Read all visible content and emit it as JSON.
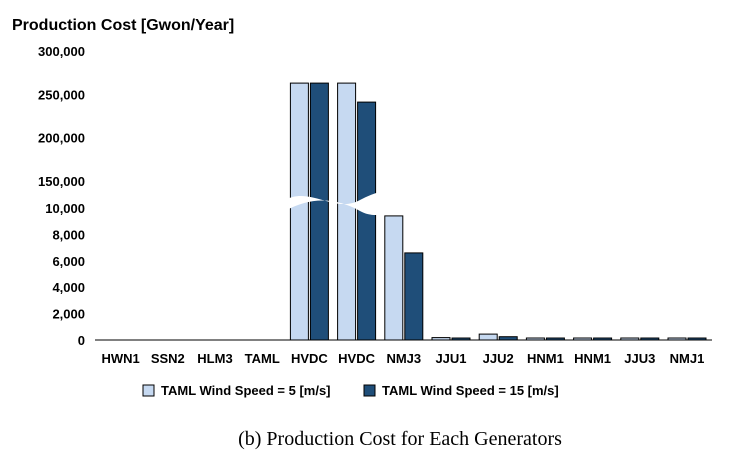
{
  "chart_data": {
    "type": "bar",
    "title": "",
    "ylabel": "Production Cost [Gwon/Year]",
    "xlabel": "",
    "caption": "(b) Production Cost for Each Generators",
    "axis_break": {
      "lower_range": [
        0,
        10000
      ],
      "upper_range": [
        150000,
        300000
      ]
    },
    "yticks_lower": [
      "0",
      "2,000",
      "4,000",
      "6,000",
      "8,000",
      "10,000"
    ],
    "yticks_upper": [
      "150,000",
      "200,000",
      "250,000",
      "300,000"
    ],
    "categories": [
      "HWN1",
      "SSN2",
      "HLM3",
      "TAML",
      "HVDC",
      "HVDC",
      "NMJ3",
      "JJU1",
      "JJU2",
      "HNM1",
      "HNM1",
      "JJU3",
      "NMJ1"
    ],
    "series": [
      {
        "name": "TAML Wind Speed = 5 [m/s]",
        "color": "#c6d9f1",
        "values": [
          0,
          0,
          0,
          0,
          263000,
          263000,
          9400,
          180,
          450,
          130,
          130,
          130,
          130
        ]
      },
      {
        "name": "TAML Wind Speed = 15 [m/s]",
        "color": "#1f4e79",
        "values": [
          0,
          0,
          0,
          0,
          263000,
          241000,
          6600,
          130,
          250,
          130,
          130,
          130,
          130
        ]
      }
    ],
    "legend_position": "bottom"
  }
}
